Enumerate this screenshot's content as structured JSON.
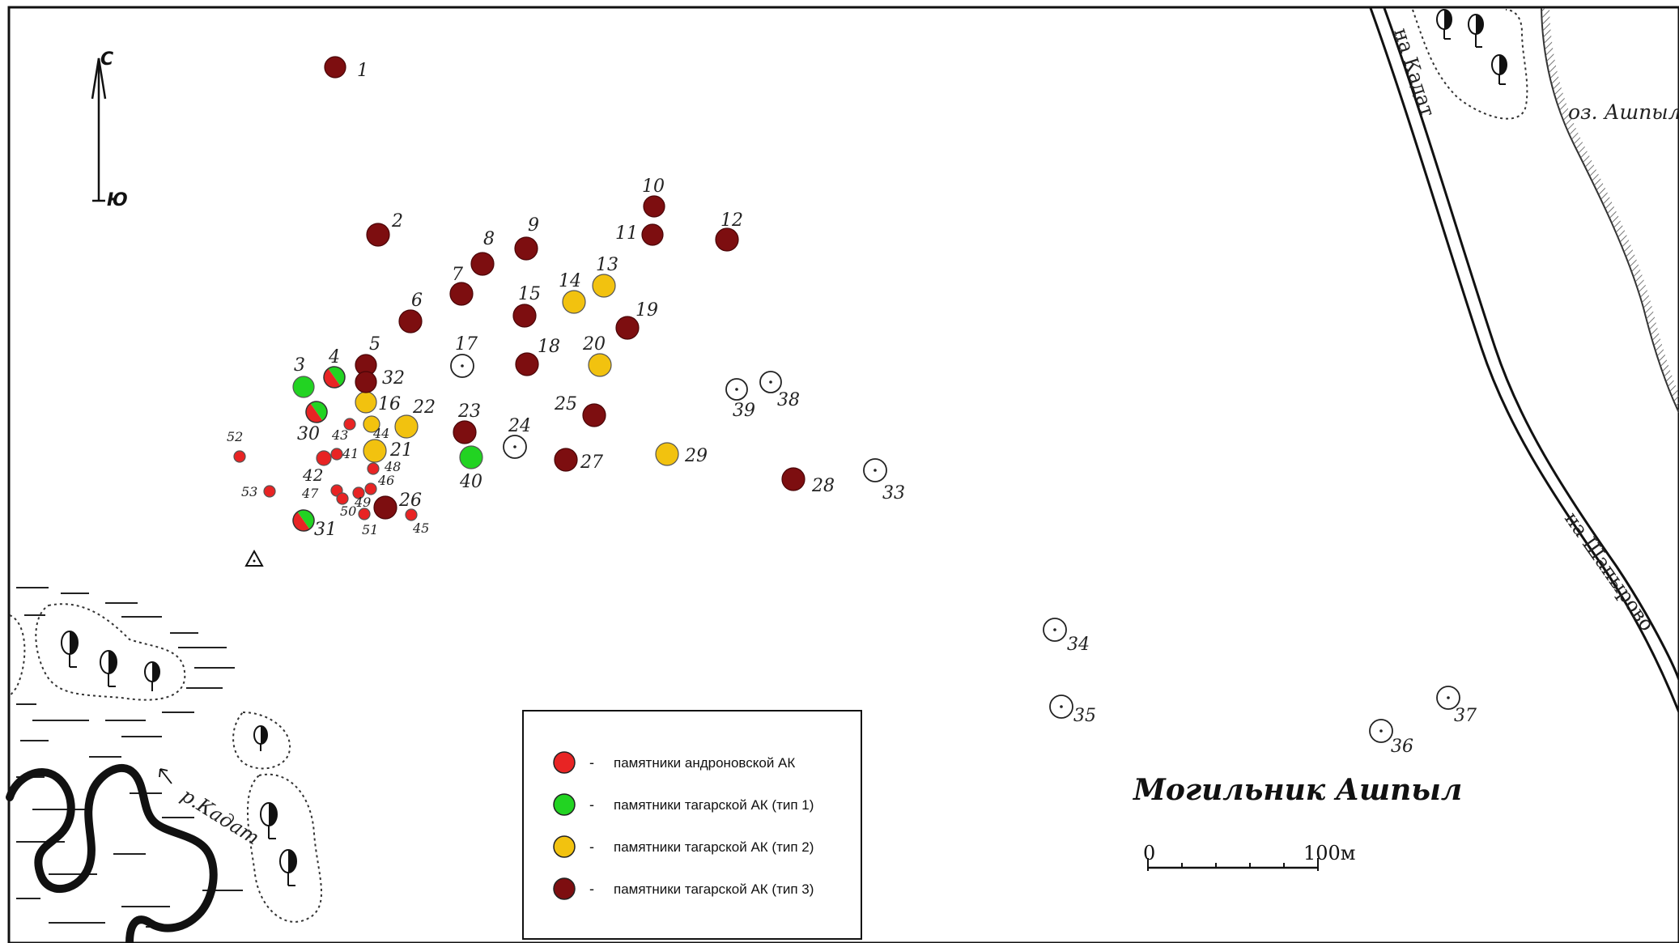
{
  "colors": {
    "andronovo": "#e82424",
    "tagar_1": "#22d322",
    "tagar_2": "#f2c20f",
    "tagar_3": "#7d0e10",
    "open": "#ffffff"
  },
  "compass": {
    "north": "С",
    "south": "Ю"
  },
  "title": "Могильник Ашпыл",
  "scale": {
    "zero": "0",
    "max": "100м"
  },
  "places": {
    "lake": "оз. Ашпыл",
    "river": "р.Кадат",
    "road_kadat": "на Кадат",
    "road_shapyrovo": "на Шапырово"
  },
  "legend": [
    {
      "key": "andronovo",
      "dash": "-",
      "text": "памятники андроновской АК"
    },
    {
      "key": "tagar_1",
      "dash": "-",
      "text": "памятники тагарской АК (тип 1)"
    },
    {
      "key": "tagar_2",
      "dash": "-",
      "text": "памятники тагарской АК (тип 2)"
    },
    {
      "key": "tagar_3",
      "dash": "-",
      "text": "памятники тагарской АК (тип 3)"
    }
  ],
  "monuments": [
    {
      "label": "1",
      "type": "tagar_3"
    },
    {
      "label": "2",
      "type": "tagar_3"
    },
    {
      "label": "3",
      "type": "tagar_1"
    },
    {
      "label": "4",
      "type": "andronovo+tagar_1"
    },
    {
      "label": "5",
      "type": "tagar_3"
    },
    {
      "label": "6",
      "type": "tagar_3"
    },
    {
      "label": "7",
      "type": "tagar_3"
    },
    {
      "label": "8",
      "type": "tagar_3"
    },
    {
      "label": "9",
      "type": "tagar_3"
    },
    {
      "label": "10",
      "type": "tagar_3"
    },
    {
      "label": "11",
      "type": "tagar_3"
    },
    {
      "label": "12",
      "type": "tagar_3"
    },
    {
      "label": "13",
      "type": "tagar_2"
    },
    {
      "label": "14",
      "type": "tagar_2"
    },
    {
      "label": "15",
      "type": "tagar_3"
    },
    {
      "label": "16",
      "type": "tagar_2"
    },
    {
      "label": "17",
      "type": "open"
    },
    {
      "label": "18",
      "type": "tagar_3"
    },
    {
      "label": "19",
      "type": "tagar_3"
    },
    {
      "label": "20",
      "type": "tagar_2"
    },
    {
      "label": "21",
      "type": "tagar_2"
    },
    {
      "label": "22",
      "type": "tagar_2"
    },
    {
      "label": "23",
      "type": "tagar_3"
    },
    {
      "label": "24",
      "type": "open"
    },
    {
      "label": "25",
      "type": "tagar_3"
    },
    {
      "label": "26",
      "type": "tagar_3"
    },
    {
      "label": "27",
      "type": "tagar_3"
    },
    {
      "label": "28",
      "type": "tagar_3"
    },
    {
      "label": "29",
      "type": "tagar_2"
    },
    {
      "label": "30",
      "type": "andronovo+tagar_1"
    },
    {
      "label": "31",
      "type": "andronovo+tagar_1"
    },
    {
      "label": "32",
      "type": "tagar_3"
    },
    {
      "label": "33",
      "type": "open"
    },
    {
      "label": "34",
      "type": "open"
    },
    {
      "label": "35",
      "type": "open"
    },
    {
      "label": "36",
      "type": "open"
    },
    {
      "label": "37",
      "type": "open"
    },
    {
      "label": "38",
      "type": "open"
    },
    {
      "label": "39",
      "type": "open"
    },
    {
      "label": "40",
      "type": "tagar_1"
    },
    {
      "label": "41",
      "type": "andronovo"
    },
    {
      "label": "42",
      "type": "andronovo"
    },
    {
      "label": "43",
      "type": "andronovo"
    },
    {
      "label": "44",
      "type": "tagar_2"
    },
    {
      "label": "45",
      "type": "andronovo"
    },
    {
      "label": "46",
      "type": "andronovo"
    },
    {
      "label": "47",
      "type": "andronovo"
    },
    {
      "label": "48",
      "type": "andronovo"
    },
    {
      "label": "49",
      "type": "andronovo"
    },
    {
      "label": "50",
      "type": "andronovo"
    },
    {
      "label": "51",
      "type": "andronovo"
    },
    {
      "label": "52",
      "type": "andronovo"
    },
    {
      "label": "53",
      "type": "andronovo"
    }
  ]
}
